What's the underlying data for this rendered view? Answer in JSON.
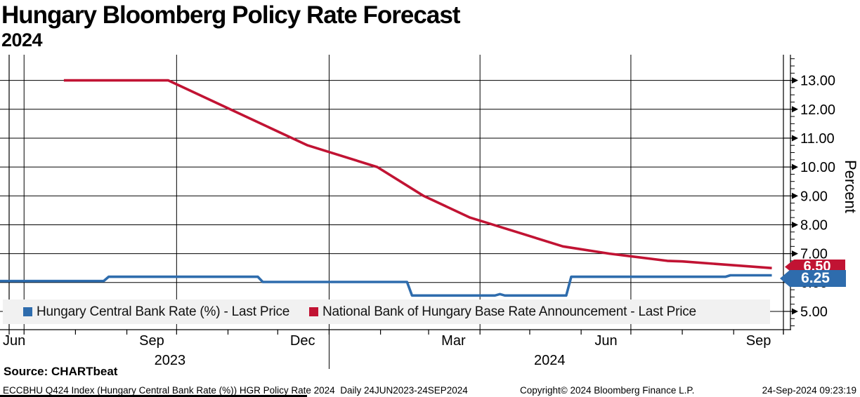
{
  "header": {
    "title": "Hungary Bloomberg Policy Rate Forecast",
    "subtitle": "2024"
  },
  "chart_data": {
    "type": "line",
    "title": "Hungary Bloomberg Policy Rate Forecast",
    "subtitle": "2024",
    "grid": true,
    "legend_position": "bottom-inside",
    "y_axis": {
      "label": "Percent",
      "side": "right",
      "min": 5,
      "max": 13,
      "major_step": 1,
      "minor_step": 0.25,
      "tick_labels": [
        "13.00",
        "12.00",
        "11.00",
        "10.00",
        "9.00",
        "8.00",
        "7.00",
        "6.00",
        "5.00"
      ]
    },
    "x_axis": {
      "start": "2023-06-22",
      "end": "2024-10-01",
      "year_divider": "2024-01-01",
      "quarter_gridlines": [
        "2023-07-01",
        "2023-10-01",
        "2024-01-01",
        "2024-04-01",
        "2024-07-01"
      ],
      "month_labels": [
        {
          "label": "Jun",
          "date": "2023-06-24",
          "align": "start"
        },
        {
          "label": "Sep",
          "date": "2023-09-16"
        },
        {
          "label": "Dec",
          "date": "2023-12-16"
        },
        {
          "label": "Mar",
          "date": "2024-03-16"
        },
        {
          "label": "Jun",
          "date": "2024-06-16"
        },
        {
          "label": "Sep",
          "date": "2024-09-16"
        }
      ],
      "year_labels": [
        {
          "label": "2023",
          "date": "2023-09-27"
        },
        {
          "label": "2024",
          "date": "2024-05-13"
        }
      ]
    },
    "series": [
      {
        "name": "National Bank of Hungary Base Rate Announcement - Last Price",
        "color": "#c11333",
        "last_price": "6.50",
        "points": [
          [
            "2023-07-25",
            13.0
          ],
          [
            "2023-09-26",
            13.0
          ],
          [
            "2023-10-24",
            12.25
          ],
          [
            "2023-11-21",
            11.5
          ],
          [
            "2023-12-19",
            10.75
          ],
          [
            "2024-01-30",
            10.0
          ],
          [
            "2024-02-27",
            9.0
          ],
          [
            "2024-03-26",
            8.25
          ],
          [
            "2024-04-23",
            7.75
          ],
          [
            "2024-05-21",
            7.25
          ],
          [
            "2024-06-18",
            7.0
          ],
          [
            "2024-07-23",
            6.75
          ],
          [
            "2024-08-01",
            6.73
          ],
          [
            "2024-09-24",
            6.5
          ]
        ]
      },
      {
        "name": "Hungary Central Bank Rate (%) - Last Price",
        "color": "#2e6cad",
        "last_price": "6.25",
        "points": [
          [
            "2023-06-15",
            6.05
          ],
          [
            "2023-08-18",
            6.05
          ],
          [
            "2023-08-21",
            6.2
          ],
          [
            "2023-11-19",
            6.2
          ],
          [
            "2023-11-22",
            6.02
          ],
          [
            "2024-02-17",
            6.02
          ],
          [
            "2024-02-20",
            5.55
          ],
          [
            "2024-04-10",
            5.55
          ],
          [
            "2024-04-13",
            5.6
          ],
          [
            "2024-04-16",
            5.55
          ],
          [
            "2024-05-23",
            5.55
          ],
          [
            "2024-05-26",
            6.2
          ],
          [
            "2024-08-27",
            6.2
          ],
          [
            "2024-08-30",
            6.25
          ],
          [
            "2024-09-24",
            6.25
          ]
        ]
      }
    ]
  },
  "legend": {
    "items": [
      {
        "label": "Hungary Central Bank Rate (%) - Last Price",
        "color": "#2e6cad"
      },
      {
        "label": "National Bank of Hungary Base Rate Announcement - Last Price",
        "color": "#c11333"
      }
    ]
  },
  "badges": [
    {
      "value": "6.50",
      "color": "#c11333"
    },
    {
      "value": "6.25",
      "color": "#2e6cad"
    }
  ],
  "footer": {
    "source_label": "Source: CHARTbeat",
    "description": "ECCBHU Q424 Index (Hungary Central Bank Rate (%)) HGR Policy Rate 2024  Daily 24JUN2023-24SEP2024",
    "copyright": "Copyright© 2024 Bloomberg Finance L.P.",
    "timestamp": "24-Sep-2024 09:23:19"
  }
}
